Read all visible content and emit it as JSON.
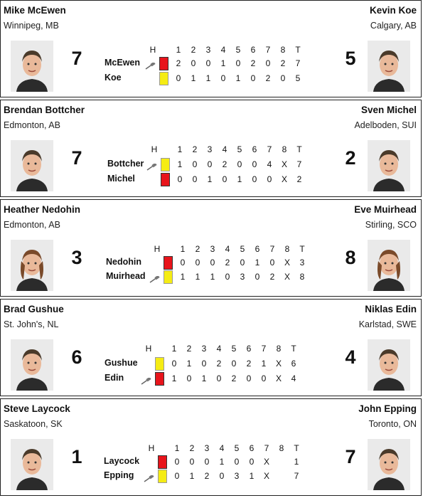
{
  "header_labels": [
    "H",
    "1",
    "2",
    "3",
    "4",
    "5",
    "6",
    "7",
    "8",
    "T"
  ],
  "games": [
    {
      "left": {
        "name": "Mike McEwen",
        "city": "Winnipeg, MB",
        "score": "7",
        "avatar": "skip-photo-mcewen"
      },
      "right": {
        "name": "Kevin Koe",
        "city": "Calgary, AB",
        "score": "5",
        "avatar": "skip-photo-koe"
      },
      "rows": [
        {
          "team": "McEwen",
          "stone": "red",
          "hammer": true,
          "ends": [
            "2",
            "0",
            "0",
            "1",
            "0",
            "2",
            "0",
            "2"
          ],
          "total": "7"
        },
        {
          "team": "Koe",
          "stone": "yellow",
          "hammer": false,
          "ends": [
            "0",
            "1",
            "1",
            "0",
            "1",
            "0",
            "2",
            "0"
          ],
          "total": "5"
        }
      ]
    },
    {
      "left": {
        "name": "Brendan Bottcher",
        "city": "Edmonton, AB",
        "score": "7",
        "avatar": "skip-photo-bottcher"
      },
      "right": {
        "name": "Sven Michel",
        "city": "Adelboden, SUI",
        "score": "2",
        "avatar": "skip-photo-michel"
      },
      "rows": [
        {
          "team": "Bottcher",
          "stone": "yellow",
          "hammer": true,
          "ends": [
            "1",
            "0",
            "0",
            "2",
            "0",
            "0",
            "4",
            "X"
          ],
          "total": "7"
        },
        {
          "team": "Michel",
          "stone": "red",
          "hammer": false,
          "ends": [
            "0",
            "0",
            "1",
            "0",
            "1",
            "0",
            "0",
            "X"
          ],
          "total": "2"
        }
      ]
    },
    {
      "left": {
        "name": "Heather Nedohin",
        "city": "Edmonton, AB",
        "score": "3",
        "avatar": "skip-photo-nedohin"
      },
      "right": {
        "name": "Eve Muirhead",
        "city": "Stirling, SCO",
        "score": "8",
        "avatar": "skip-photo-muirhead"
      },
      "rows": [
        {
          "team": "Nedohin",
          "stone": "red",
          "hammer": false,
          "ends": [
            "0",
            "0",
            "0",
            "2",
            "0",
            "1",
            "0",
            "X"
          ],
          "total": "3"
        },
        {
          "team": "Muirhead",
          "stone": "yellow",
          "hammer": true,
          "ends": [
            "1",
            "1",
            "1",
            "0",
            "3",
            "0",
            "2",
            "X"
          ],
          "total": "8"
        }
      ]
    },
    {
      "left": {
        "name": "Brad Gushue",
        "city": "St. John's, NL",
        "score": "6",
        "avatar": "skip-photo-gushue"
      },
      "right": {
        "name": "Niklas Edin",
        "city": "Karlstad, SWE",
        "score": "4",
        "avatar": "skip-photo-edin"
      },
      "rows": [
        {
          "team": "Gushue",
          "stone": "yellow",
          "hammer": false,
          "ends": [
            "0",
            "1",
            "0",
            "2",
            "0",
            "2",
            "1",
            "X"
          ],
          "total": "6"
        },
        {
          "team": "Edin",
          "stone": "red",
          "hammer": true,
          "ends": [
            "1",
            "0",
            "1",
            "0",
            "2",
            "0",
            "0",
            "X"
          ],
          "total": "4"
        }
      ]
    },
    {
      "left": {
        "name": "Steve Laycock",
        "city": "Saskatoon, SK",
        "score": "1",
        "avatar": "skip-photo-laycock"
      },
      "right": {
        "name": "John Epping",
        "city": "Toronto, ON",
        "score": "7",
        "avatar": "skip-photo-epping"
      },
      "rows": [
        {
          "team": "Laycock",
          "stone": "red",
          "hammer": false,
          "ends": [
            "0",
            "0",
            "0",
            "1",
            "0",
            "0",
            "X",
            ""
          ],
          "total": "1"
        },
        {
          "team": "Epping",
          "stone": "yellow",
          "hammer": true,
          "ends": [
            "0",
            "1",
            "2",
            "0",
            "3",
            "1",
            "X",
            ""
          ],
          "total": "7"
        }
      ]
    }
  ]
}
